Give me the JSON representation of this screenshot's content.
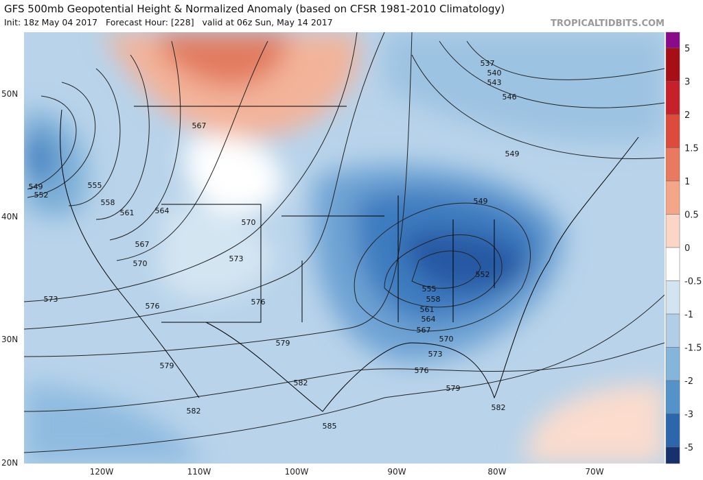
{
  "header": {
    "title": "GFS 500mb Geopotential Height & Normalized Anomaly (based on CFSR 1981-2010 Climatology)",
    "subtitle": "Init: 18z May 04 2017   Forecast Hour: [228]   valid at 06z Sun, May 14 2017",
    "watermark": "TROPICALTIDBITS.COM"
  },
  "colorbar": {
    "labels": [
      "5",
      "3",
      "2",
      "1.5",
      "1",
      "0.5",
      "0",
      "-0.5",
      "-1",
      "-1.5",
      "-2",
      "-3",
      "-5"
    ],
    "colors": [
      "#8b0a8b",
      "#a50f15",
      "#c8202a",
      "#dc4b3c",
      "#e9795f",
      "#f3a688",
      "#fbd6c6",
      "#ffffff",
      "#d3e4f1",
      "#b0cee6",
      "#85b6da",
      "#5493c9",
      "#2c66ad",
      "#17306e"
    ]
  },
  "lon_labels": [
    "120W",
    "110W",
    "100W",
    "90W",
    "80W",
    "70W"
  ],
  "lat_labels": [
    "50N",
    "40N",
    "30N",
    "20N"
  ],
  "contour_labels": [
    "537",
    "540",
    "543",
    "546",
    "549",
    "549",
    "552",
    "555",
    "558",
    "561",
    "564",
    "567",
    "567",
    "570",
    "570",
    "573",
    "573",
    "576",
    "576",
    "579",
    "579",
    "582",
    "582",
    "585",
    "549",
    "552",
    "555",
    "558",
    "561",
    "564",
    "567",
    "570",
    "573",
    "576",
    "579",
    "582"
  ]
}
